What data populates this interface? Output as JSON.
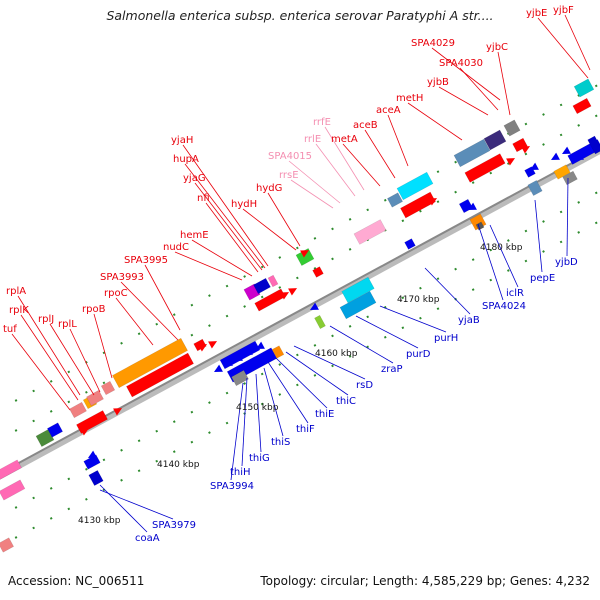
{
  "header": {
    "title": "Salmonella enterica subsp. enterica serovar Paratyphi A str...."
  },
  "footer": {
    "accession": "Accession: NC_006511",
    "summary": "Topology: circular; Length: 4,585,229 bp; Genes: 4,232"
  },
  "colors": {
    "forward_label": "#e8000b",
    "reverse_label": "#0000cc",
    "rna_label": "#f48fb1",
    "backbone": "#999999"
  },
  "kbp_ticks": [
    {
      "label": "4130 kbp"
    },
    {
      "label": "4140 kbp"
    },
    {
      "label": "4150 kbp"
    },
    {
      "label": "4160 kbp"
    },
    {
      "label": "4170 kbp"
    },
    {
      "label": "4180 kbp"
    }
  ],
  "forward_genes": [
    "tuf",
    "rplK",
    "rplA",
    "rplJ",
    "rplL",
    "rpoB",
    "rpoC",
    "SPA3993",
    "SPA3995",
    "nudC",
    "hemE",
    "nfi",
    "yjaG",
    "hupA",
    "yjaH",
    "hydH",
    "hydG",
    "metA",
    "aceB",
    "aceA",
    "metH",
    "yjbB",
    "SPA4030",
    "SPA4029",
    "yjbC",
    "yjbE",
    "yjbF"
  ],
  "rna_genes": [
    "rrsE",
    "SPA4015",
    "rrlE",
    "rrfE"
  ],
  "reverse_genes": [
    "coaA",
    "SPA3979",
    "SPA3994",
    "thiH",
    "thiG",
    "thiS",
    "thiF",
    "thiE",
    "thiC",
    "rsD",
    "zraP",
    "purD",
    "purH",
    "yjaB",
    "SPA4024",
    "iclR",
    "pepE",
    "yjbD"
  ]
}
